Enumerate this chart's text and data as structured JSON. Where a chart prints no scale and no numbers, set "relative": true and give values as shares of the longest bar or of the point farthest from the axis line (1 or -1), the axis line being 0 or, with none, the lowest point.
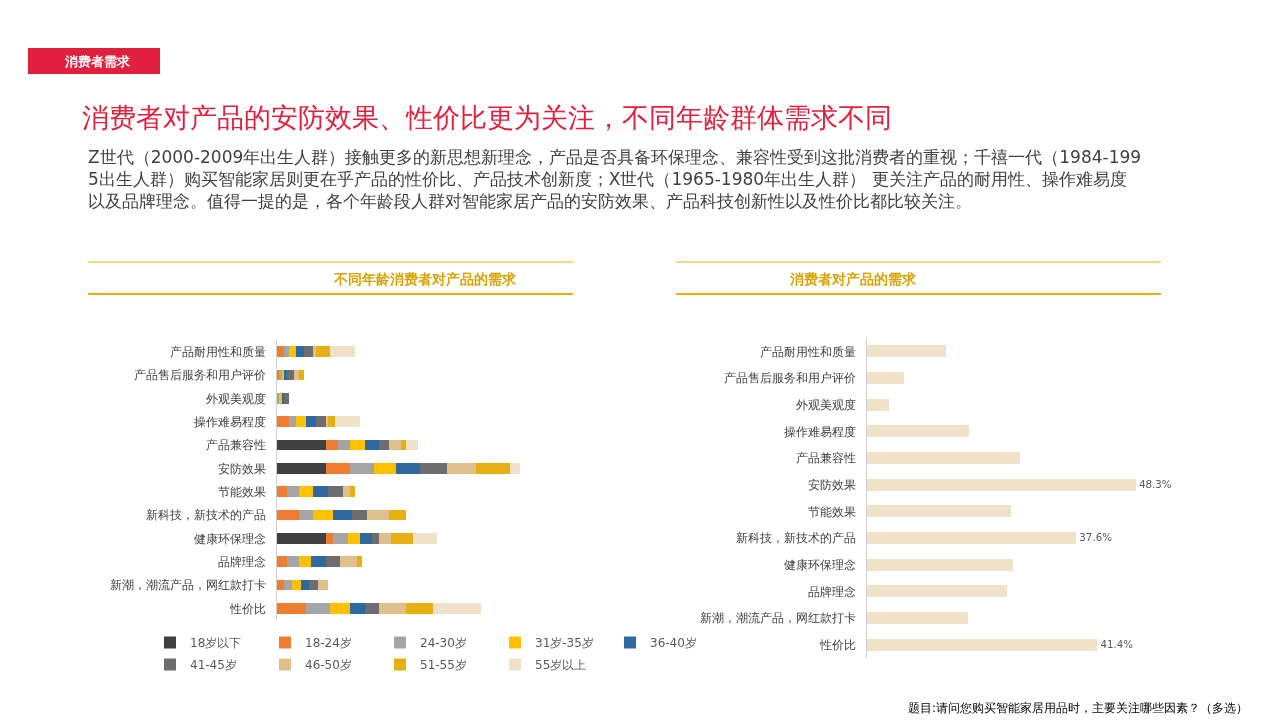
{
  "chart_data": [
    {
      "type": "other",
      "title": "消费者对产品的安防效果、性价比更为关注，不同年龄群体需求不同",
      "subtitle": "Z世代（2000-2009年出生人群）接触更多的新思想新理念，产品是否具备环保理念、兼容性受到这批消费者的重视；千禧一代（1984-1995出生人群）购买智能家居则更在乎产品的性价比、产品技术创新度；X世代（1965-1980年出生人群） 更关注产品的耐用性、操作难易度以及品牌理念。值得一提的是，各个年龄段人群对智能家居产品的安防效果、产品科技创新性以及性价比都比较关注。",
      "annotations": [
        "消费者需求",
        "题目:请问您购买智能家居用品时，主要关注哪些因素？（多选）"
      ]
    },
    {
      "type": "bar",
      "title": "不同年龄消费者对产品的需求",
      "orientation": "horizontal",
      "stacked": true,
      "relative": true,
      "legend": "bottom",
      "categories": [
        "产品耐用性和质量",
        "产品售后服务和用户评价",
        "外观美观度",
        "操作难易程度",
        "产品兼容性",
        "安防效果",
        "节能效果",
        "新科技，新技术的产品",
        "健康环保理念",
        "品牌理念",
        "新潮，潮流产品，网红款打卡",
        "性价比"
      ],
      "series": [
        {
          "name": "18岁以下",
          "color": "#404040",
          "values": [
            0,
            0,
            0,
            0,
            0.2,
            0.2,
            0,
            0,
            0.2,
            0,
            0,
            0
          ]
        },
        {
          "name": "18-24岁",
          "color": "#ed7d31",
          "values": [
            0.03,
            0.01,
            0,
            0.05,
            0.05,
            0.1,
            0.04,
            0.09,
            0.03,
            0.04,
            0.03,
            0.12
          ]
        },
        {
          "name": "24-30岁",
          "color": "#a5a5a5",
          "values": [
            0.02,
            0.01,
            0.01,
            0.03,
            0.05,
            0.1,
            0.05,
            0.06,
            0.06,
            0.05,
            0.03,
            0.1
          ]
        },
        {
          "name": "31岁-35岁",
          "color": "#ffc000",
          "values": [
            0.03,
            0.01,
            0.01,
            0.04,
            0.06,
            0.09,
            0.06,
            0.08,
            0.05,
            0.05,
            0.04,
            0.08
          ]
        },
        {
          "name": "36-40岁",
          "color": "#2e6aa0",
          "values": [
            0.03,
            0.01,
            0.01,
            0.04,
            0.06,
            0.1,
            0.06,
            0.08,
            0.05,
            0.06,
            0.03,
            0.06
          ]
        },
        {
          "name": "41-45岁",
          "color": "#6d6d6d",
          "values": [
            0.04,
            0.03,
            0.02,
            0.04,
            0.04,
            0.11,
            0.06,
            0.06,
            0.03,
            0.06,
            0.04,
            0.06
          ]
        },
        {
          "name": "46-50岁",
          "color": "#e0c08a",
          "values": [
            0.01,
            0.02,
            0,
            0.01,
            0.05,
            0.12,
            0.03,
            0.09,
            0.05,
            0.07,
            0.04,
            0.11
          ]
        },
        {
          "name": "51-55岁",
          "color": "#e6b012",
          "values": [
            0.06,
            0.02,
            0,
            0.03,
            0.02,
            0.14,
            0.02,
            0.07,
            0.09,
            0.02,
            0,
            0.11
          ]
        },
        {
          "name": "55岁以上",
          "color": "#f0e2c8",
          "values": [
            0.1,
            0,
            0,
            0.1,
            0.05,
            0.04,
            0,
            0,
            0.1,
            0,
            0,
            0.2
          ]
        }
      ]
    },
    {
      "type": "bar",
      "title": "消费者对产品的需求",
      "orientation": "horizontal",
      "categories": [
        "产品耐用性和质量",
        "产品售后服务和用户评价",
        "外观美观度",
        "操作难易程度",
        "产品兼容性",
        "安防效果",
        "节能效果",
        "新科技，新技术的产品",
        "健康环保理念",
        "品牌理念",
        "新潮，潮流产品，网红款打卡",
        "性价比"
      ],
      "color": "#f0e2c8",
      "values": [
        14.2,
        6.7,
        4.0,
        18.4,
        27.4,
        48.3,
        25.8,
        37.6,
        26.3,
        25.2,
        18.2,
        41.4
      ],
      "value_labels": [
        null,
        null,
        null,
        null,
        null,
        "48.3%",
        null,
        "37.6%",
        null,
        null,
        null,
        "41.4%"
      ]
    }
  ]
}
